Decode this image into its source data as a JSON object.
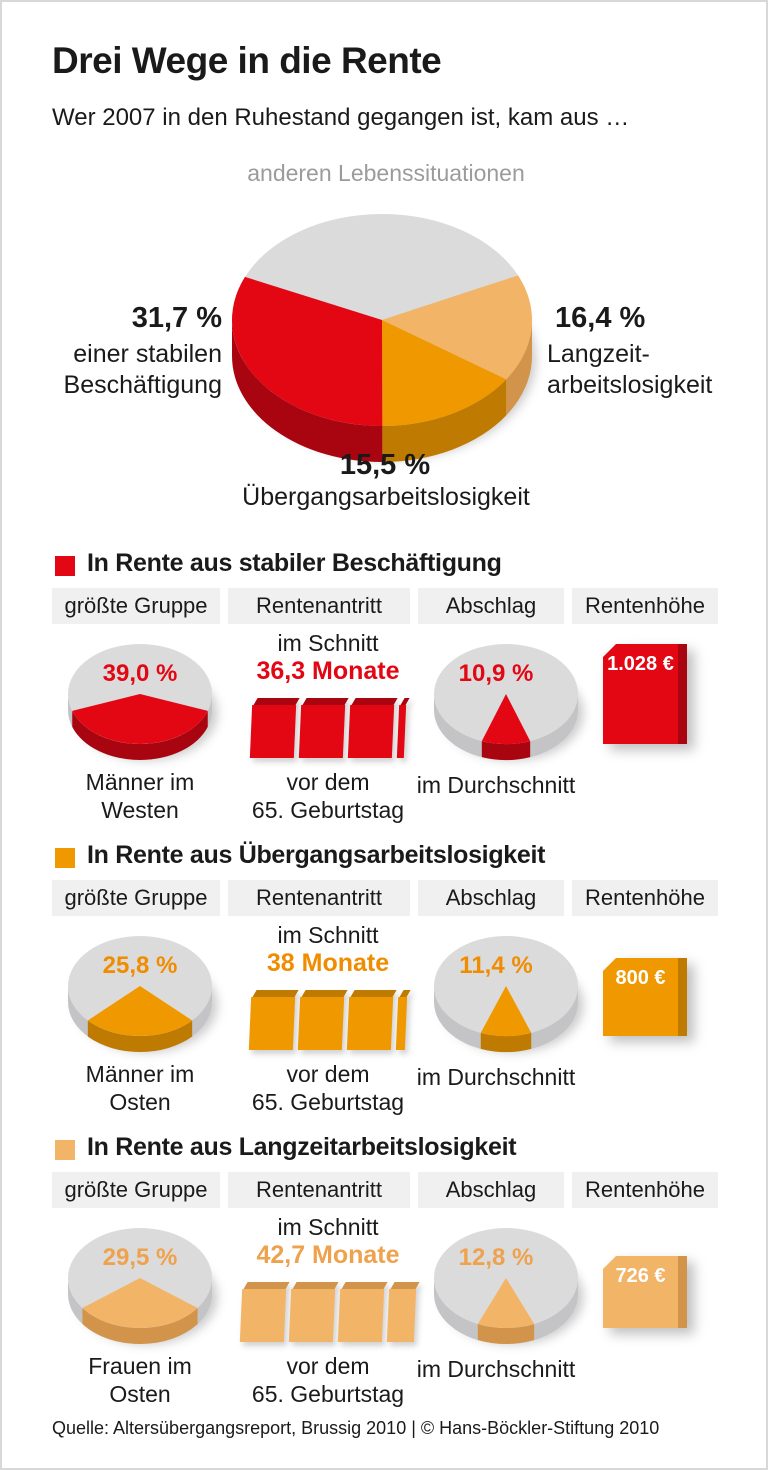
{
  "page": {
    "title": "Drei Wege in die Rente",
    "subtitle": "Wer 2007 in den Ruhestand gegangen ist, kam aus …",
    "source": "Quelle: Altersübergangsreport, Brussig 2010 | © Hans-Böckler-Stiftung 2010"
  },
  "palette": {
    "red": {
      "top": "#E30613",
      "side": "#A90510",
      "text": "#E30613"
    },
    "orange": {
      "top": "#F09800",
      "side": "#BF7A02",
      "text": "#F08C00"
    },
    "tan": {
      "top": "#F2B466",
      "side": "#D2944A",
      "text": "#EFA24D"
    },
    "gray": {
      "top": "#DBDBDB",
      "side": "#C4C4C6"
    }
  },
  "chart_data": {
    "type": "pie",
    "title": "Drei Wege in die Rente",
    "subtitle": "Wer 2007 in den Ruhestand gegangen ist, kam aus …",
    "unit": "%",
    "main_pie": {
      "type": "pie",
      "slices": [
        {
          "label": "anderen Lebenssituationen",
          "value": 36.4,
          "color": "gray",
          "display": ""
        },
        {
          "label": "einer stabilen Beschäftigung",
          "label_lines": [
            "einer stabilen",
            "Beschäftigung"
          ],
          "value": 31.7,
          "display": "31,7 %",
          "color": "red"
        },
        {
          "label": "Übergangsarbeitslosigkeit",
          "value": 15.5,
          "display": "15,5 %",
          "color": "orange"
        },
        {
          "label": "Langzeitarbeitslosigkeit",
          "label_lines": [
            "Langzeit-",
            "arbeitslosigkeit"
          ],
          "value": 16.4,
          "display": "16,4 %",
          "color": "tan"
        }
      ]
    },
    "columns": [
      "größte Gruppe",
      "Rentenantritt",
      "Abschlag",
      "Rentenhöhe"
    ],
    "sections": [
      {
        "title": "In Rente aus stabiler Beschäftigung",
        "color": "red",
        "groesste_gruppe": {
          "percent": 39.0,
          "display": "39,0 %",
          "label": [
            "Männer im",
            "Westen"
          ]
        },
        "rentenantritt": {
          "prefix": "im Schnitt",
          "display": "36,3 Monate",
          "months": 36.3,
          "blocks": [
            1,
            1,
            1,
            0.16
          ],
          "suffix": [
            "vor dem",
            "65. Geburtstag"
          ]
        },
        "abschlag": {
          "percent": 10.9,
          "display": "10,9 %",
          "label": "im Durchschnitt"
        },
        "rentenhoehe": {
          "amount": 1028,
          "display": "1.028 €",
          "block_height": 100
        }
      },
      {
        "title": "In Rente aus Übergangsarbeitslosigkeit",
        "color": "orange",
        "groesste_gruppe": {
          "percent": 25.8,
          "display": "25,8 %",
          "label": [
            "Männer im",
            "Osten"
          ]
        },
        "rentenantritt": {
          "prefix": "im Schnitt",
          "display": "38 Monate",
          "months": 38,
          "blocks": [
            1,
            1,
            1,
            0.2
          ],
          "suffix": [
            "vor dem",
            "65. Geburtstag"
          ]
        },
        "abschlag": {
          "percent": 11.4,
          "display": "11,4 %",
          "label": "im Durchschnitt"
        },
        "rentenhoehe": {
          "amount": 800,
          "display": "800 €",
          "block_height": 78
        }
      },
      {
        "title": "In Rente aus Langzeitarbeitslosigkeit",
        "color": "tan",
        "groesste_gruppe": {
          "percent": 29.5,
          "display": "29,5 %",
          "label": [
            "Frauen im",
            "Osten"
          ]
        },
        "rentenantritt": {
          "prefix": "im Schnitt",
          "display": "42,7 Monate",
          "months": 42.7,
          "blocks": [
            1,
            1,
            1,
            0.62
          ],
          "suffix": [
            "vor dem",
            "65. Geburtstag"
          ]
        },
        "abschlag": {
          "percent": 12.8,
          "display": "12,8 %",
          "label": "im Durchschnitt"
        },
        "rentenhoehe": {
          "amount": 726,
          "display": "726 €",
          "block_height": 72
        }
      }
    ]
  }
}
